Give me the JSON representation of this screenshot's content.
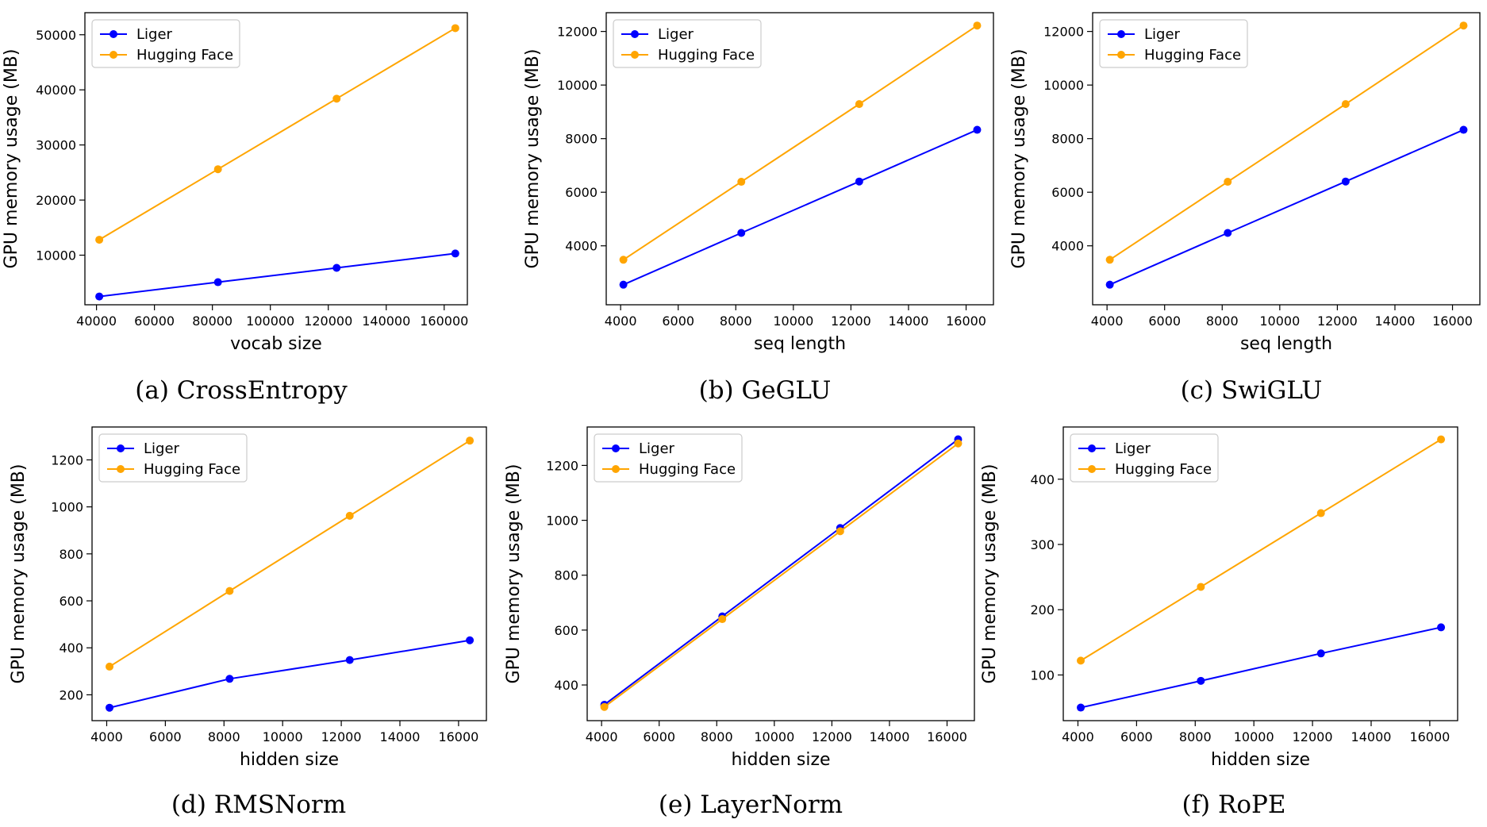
{
  "colors": {
    "liger": "#0000ff",
    "hf": "#ffa500",
    "axis": "#000000",
    "legend_border": "#cccccc"
  },
  "chart_data": [
    {
      "type": "line",
      "caption": "(a) CrossEntropy",
      "xlabel": "vocab size",
      "ylabel": "GPU memory usage (MB)",
      "xlim": [
        36000,
        168000
      ],
      "ylim": [
        1000,
        54000
      ],
      "xticks": [
        40000,
        60000,
        80000,
        100000,
        120000,
        140000,
        160000
      ],
      "yticks": [
        10000,
        20000,
        30000,
        40000,
        50000
      ],
      "grid": false,
      "legend": "top-left",
      "series": [
        {
          "name": "Liger",
          "color": "liger",
          "x": [
            40960,
            81920,
            122880,
            163840
          ],
          "y": [
            2500,
            5100,
            7700,
            10300
          ]
        },
        {
          "name": "Hugging Face",
          "color": "hf",
          "x": [
            40960,
            81920,
            122880,
            163840
          ],
          "y": [
            12800,
            25600,
            38400,
            51200
          ]
        }
      ]
    },
    {
      "type": "line",
      "caption": "(b) GeGLU",
      "xlabel": "seq length",
      "ylabel": "GPU memory usage (MB)",
      "xlim": [
        3500,
        16950
      ],
      "ylim": [
        1800,
        12700
      ],
      "xticks": [
        4000,
        6000,
        8000,
        10000,
        12000,
        14000,
        16000
      ],
      "yticks": [
        4000,
        6000,
        8000,
        10000,
        12000
      ],
      "grid": false,
      "legend": "top-left",
      "series": [
        {
          "name": "Liger",
          "color": "liger",
          "x": [
            4096,
            8192,
            12288,
            16384
          ],
          "y": [
            2550,
            4480,
            6400,
            8330
          ]
        },
        {
          "name": "Hugging Face",
          "color": "hf",
          "x": [
            4096,
            8192,
            12288,
            16384
          ],
          "y": [
            3480,
            6390,
            9290,
            12220
          ]
        }
      ]
    },
    {
      "type": "line",
      "caption": "(c) SwiGLU",
      "xlabel": "seq length",
      "ylabel": "GPU memory usage (MB)",
      "xlim": [
        3500,
        16950
      ],
      "ylim": [
        1800,
        12700
      ],
      "xticks": [
        4000,
        6000,
        8000,
        10000,
        12000,
        14000,
        16000
      ],
      "yticks": [
        4000,
        6000,
        8000,
        10000,
        12000
      ],
      "grid": false,
      "legend": "top-left",
      "series": [
        {
          "name": "Liger",
          "color": "liger",
          "x": [
            4096,
            8192,
            12288,
            16384
          ],
          "y": [
            2550,
            4480,
            6400,
            8330
          ]
        },
        {
          "name": "Hugging Face",
          "color": "hf",
          "x": [
            4096,
            8192,
            12288,
            16384
          ],
          "y": [
            3480,
            6390,
            9290,
            12220
          ]
        }
      ]
    },
    {
      "type": "line",
      "caption": "(d) RMSNorm",
      "xlabel": "hidden size",
      "ylabel": "GPU memory usage (MB)",
      "xlim": [
        3500,
        16950
      ],
      "ylim": [
        90,
        1340
      ],
      "xticks": [
        4000,
        6000,
        8000,
        10000,
        12000,
        14000,
        16000
      ],
      "yticks": [
        200,
        400,
        600,
        800,
        1000,
        1200
      ],
      "grid": false,
      "legend": "top-left",
      "series": [
        {
          "name": "Liger",
          "color": "liger",
          "x": [
            4096,
            8192,
            12288,
            16384
          ],
          "y": [
            145,
            268,
            348,
            432
          ]
        },
        {
          "name": "Hugging Face",
          "color": "hf",
          "x": [
            4096,
            8192,
            12288,
            16384
          ],
          "y": [
            320,
            642,
            962,
            1282
          ]
        }
      ]
    },
    {
      "type": "line",
      "caption": "(e) LayerNorm",
      "xlabel": "hidden size",
      "ylabel": "GPU memory usage (MB)",
      "xlim": [
        3500,
        16950
      ],
      "ylim": [
        270,
        1340
      ],
      "xticks": [
        4000,
        6000,
        8000,
        10000,
        12000,
        14000,
        16000
      ],
      "yticks": [
        400,
        600,
        800,
        1000,
        1200
      ],
      "grid": false,
      "legend": "top-left",
      "series": [
        {
          "name": "Liger",
          "color": "liger",
          "x": [
            4096,
            8192,
            12288,
            16384
          ],
          "y": [
            328,
            650,
            972,
            1295
          ]
        },
        {
          "name": "Hugging Face",
          "color": "hf",
          "x": [
            4096,
            8192,
            12288,
            16384
          ],
          "y": [
            320,
            640,
            960,
            1280
          ]
        }
      ]
    },
    {
      "type": "line",
      "caption": "(f) RoPE",
      "xlabel": "hidden size",
      "ylabel": "GPU memory usage (MB)",
      "xlim": [
        3500,
        16950
      ],
      "ylim": [
        30,
        480
      ],
      "xticks": [
        4000,
        6000,
        8000,
        10000,
        12000,
        14000,
        16000
      ],
      "yticks": [
        100,
        200,
        300,
        400
      ],
      "grid": false,
      "legend": "top-left",
      "series": [
        {
          "name": "Liger",
          "color": "liger",
          "x": [
            4096,
            8192,
            12288,
            16384
          ],
          "y": [
            50,
            91,
            133,
            173
          ]
        },
        {
          "name": "Hugging Face",
          "color": "hf",
          "x": [
            4096,
            8192,
            12288,
            16384
          ],
          "y": [
            122,
            235,
            348,
            461
          ]
        }
      ]
    }
  ]
}
